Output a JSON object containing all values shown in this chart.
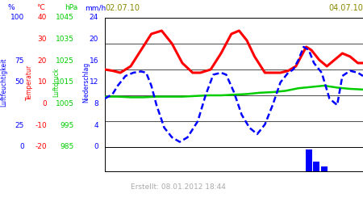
{
  "date_left": "02.07.10",
  "date_right": "04.07.10",
  "footer": "Erstellt: 08.01.2012 18:44",
  "bg_color": "#ffffff",
  "ylim_main": [
    4,
    24
  ],
  "ylim_rain": [
    0,
    2
  ],
  "xlim": [
    0,
    100
  ],
  "hlines_y": [
    8,
    12,
    16,
    20
  ],
  "hlines_main_top": 24,
  "red_line": {
    "color": "#ff0000",
    "lw": 2.2,
    "x": [
      0,
      3,
      6,
      10,
      14,
      18,
      22,
      26,
      30,
      34,
      37,
      41,
      45,
      49,
      52,
      55,
      58,
      62,
      65,
      68,
      71,
      74,
      76,
      78,
      80,
      83,
      86,
      89,
      92,
      95,
      98,
      100
    ],
    "y": [
      16,
      15.8,
      15.5,
      16.5,
      19,
      21.5,
      22,
      20,
      17,
      15.5,
      15.5,
      16,
      18.5,
      21.5,
      22,
      20.5,
      18,
      15.5,
      15.5,
      15.5,
      15.8,
      16.5,
      18,
      19.5,
      19,
      17.5,
      16.5,
      17.5,
      18.5,
      18,
      17,
      17
    ]
  },
  "green_line": {
    "color": "#00cc00",
    "lw": 1.8,
    "x": [
      0,
      5,
      10,
      15,
      20,
      25,
      30,
      35,
      40,
      45,
      50,
      55,
      60,
      65,
      70,
      75,
      80,
      85,
      90,
      95,
      100
    ],
    "y": [
      11.8,
      11.8,
      11.7,
      11.7,
      11.8,
      11.8,
      11.8,
      11.9,
      12.0,
      12.0,
      12.1,
      12.2,
      12.4,
      12.5,
      12.7,
      13.1,
      13.3,
      13.5,
      13.2,
      13.0,
      12.9
    ]
  },
  "blue_line": {
    "color": "#0000ff",
    "lw": 1.8,
    "x": [
      0,
      3,
      5,
      8,
      11,
      14,
      16,
      18,
      20,
      23,
      26,
      29,
      32,
      36,
      39,
      42,
      45,
      47,
      50,
      53,
      56,
      59,
      62,
      65,
      68,
      71,
      73,
      75,
      77,
      79,
      81,
      84,
      87,
      90,
      92,
      95,
      98,
      100
    ],
    "y": [
      11.5,
      12.2,
      13.5,
      15,
      15.5,
      15.7,
      15.5,
      13.5,
      10.5,
      7,
      5.5,
      4.8,
      5.5,
      8,
      12,
      15.2,
      15.5,
      15.2,
      12.5,
      9,
      7,
      6,
      7.5,
      10.5,
      14,
      15.5,
      16,
      17.5,
      19.5,
      19,
      17,
      15.5,
      11.5,
      10.5,
      15,
      15.8,
      15.5,
      15
    ]
  },
  "rain_bars": {
    "color": "#0000ff",
    "data": [
      [
        79,
        1.8
      ],
      [
        82,
        0.8
      ],
      [
        85,
        0.4
      ]
    ]
  },
  "left_pct_vals": [
    100,
    75,
    50,
    25,
    0
  ],
  "left_temp_vals": [
    40,
    30,
    20,
    10,
    0,
    -10,
    -20
  ],
  "left_hpa_vals": [
    1045,
    1035,
    1025,
    1015,
    1005,
    995,
    985
  ],
  "left_mmh_vals": [
    24,
    20,
    16,
    12,
    8,
    4,
    0
  ],
  "color_pct": "#0000ff",
  "color_temp": "#ff0000",
  "color_hpa": "#00cc00",
  "color_mmh": "#0000ff",
  "date_color": "#888800",
  "footer_color": "#aaaaaa"
}
